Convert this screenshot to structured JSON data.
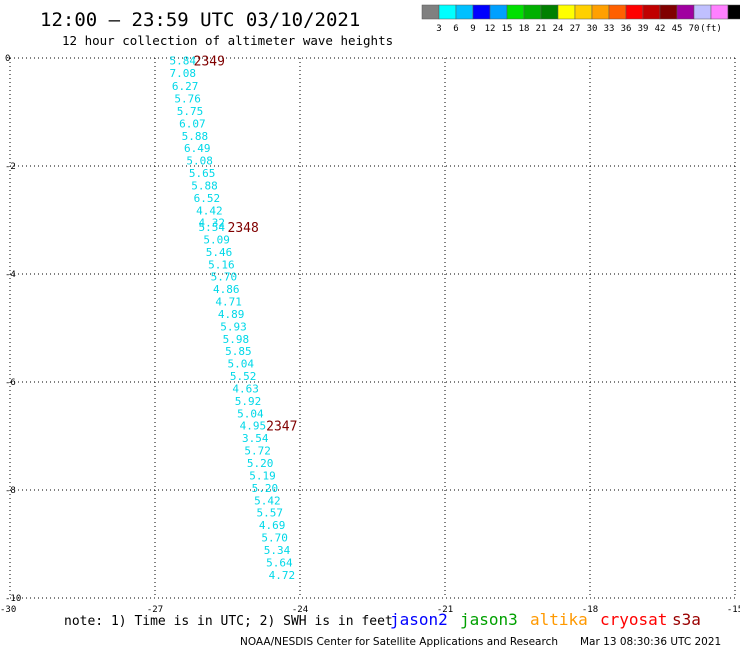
{
  "header": {
    "title": "12:00 — 23:59 UTC 03/10/2021",
    "subtitle": "12 hour collection of altimeter wave heights"
  },
  "legend": {
    "colors": [
      "#808080",
      "#00ffff",
      "#00c0ff",
      "#0000ff",
      "#00a0ff",
      "#00e000",
      "#00b000",
      "#008000",
      "#ffff00",
      "#ffd000",
      "#ffa000",
      "#ff6000",
      "#ff0000",
      "#c00000",
      "#800000",
      "#a000a0",
      "#c0c0ff",
      "#ff80ff",
      "#000000"
    ],
    "labels": [
      "3",
      "6",
      "9",
      "12",
      "15",
      "18",
      "21",
      "24",
      "27",
      "30",
      "33",
      "36",
      "39",
      "42",
      "45",
      "70",
      "(ft)"
    ]
  },
  "satellites": [
    {
      "name": "jason2",
      "color": "#0000ff"
    },
    {
      "name": "jason3",
      "color": "#00a000"
    },
    {
      "name": "altika",
      "color": "#ff9900"
    },
    {
      "name": "cryosat",
      "color": "#ff0000"
    },
    {
      "name": "s3a",
      "color": "#990000"
    }
  ],
  "footer": {
    "note": "note:  1) Time is in UTC; 2) SWH is in feet",
    "credit": "NOAA/NESDIS Center for Satellite Applications and Research",
    "timestamp": "Mar 13 08:30:36 UTC 2021"
  },
  "chart_data": {
    "type": "scatter",
    "xlim": [
      -30,
      -15
    ],
    "ylim": [
      -10,
      0
    ],
    "xticks": [
      "-30",
      "-27",
      "-24",
      "-21",
      "-18",
      "-15"
    ],
    "yticks": [
      "0",
      "-2",
      "-4",
      "-6",
      "-8",
      "-10"
    ],
    "grid": true,
    "point_color": "#00d8e8",
    "label_color": "#800000",
    "points": [
      {
        "x": -26.7,
        "y": -0.05,
        "v": "5.84"
      },
      {
        "x": -26.7,
        "y": -0.28,
        "v": "7.08"
      },
      {
        "x": -26.65,
        "y": -0.52,
        "v": "6.27"
      },
      {
        "x": -26.6,
        "y": -0.75,
        "v": "5.76"
      },
      {
        "x": -26.55,
        "y": -0.98,
        "v": "5.75"
      },
      {
        "x": -26.5,
        "y": -1.21,
        "v": "6.07"
      },
      {
        "x": -26.45,
        "y": -1.44,
        "v": "5.88"
      },
      {
        "x": -26.4,
        "y": -1.67,
        "v": "6.49"
      },
      {
        "x": -26.35,
        "y": -1.9,
        "v": "5.08"
      },
      {
        "x": -26.3,
        "y": -2.13,
        "v": "5.65"
      },
      {
        "x": -26.25,
        "y": -2.36,
        "v": "5.88"
      },
      {
        "x": -26.2,
        "y": -2.59,
        "v": "6.52"
      },
      {
        "x": -26.15,
        "y": -2.82,
        "v": "4.42"
      },
      {
        "x": -26.1,
        "y": -3.05,
        "v": "4.32"
      },
      {
        "x": -26.1,
        "y": -3.13,
        "v": "5.54"
      },
      {
        "x": -26.0,
        "y": -3.36,
        "v": "5.09"
      },
      {
        "x": -25.95,
        "y": -3.59,
        "v": "5.46"
      },
      {
        "x": -25.9,
        "y": -3.82,
        "v": "5.16"
      },
      {
        "x": -25.85,
        "y": -4.05,
        "v": "5.70"
      },
      {
        "x": -25.8,
        "y": -4.28,
        "v": "4.86"
      },
      {
        "x": -25.75,
        "y": -4.51,
        "v": "4.71"
      },
      {
        "x": -25.7,
        "y": -4.74,
        "v": "4.89"
      },
      {
        "x": -25.65,
        "y": -4.97,
        "v": "5.93"
      },
      {
        "x": -25.6,
        "y": -5.2,
        "v": "5.98"
      },
      {
        "x": -25.55,
        "y": -5.43,
        "v": "5.85"
      },
      {
        "x": -25.5,
        "y": -5.66,
        "v": "5.04"
      },
      {
        "x": -25.45,
        "y": -5.89,
        "v": "5.52"
      },
      {
        "x": -25.4,
        "y": -6.12,
        "v": "4.63"
      },
      {
        "x": -25.35,
        "y": -6.35,
        "v": "5.92"
      },
      {
        "x": -25.3,
        "y": -6.58,
        "v": "5.04"
      },
      {
        "x": -25.25,
        "y": -6.81,
        "v": "4.95"
      },
      {
        "x": -25.2,
        "y": -7.04,
        "v": "3.54"
      },
      {
        "x": -25.15,
        "y": -7.27,
        "v": "5.72"
      },
      {
        "x": -25.1,
        "y": -7.5,
        "v": "5.20"
      },
      {
        "x": -25.05,
        "y": -7.73,
        "v": "5.19"
      },
      {
        "x": -25.0,
        "y": -7.96,
        "v": "5.20"
      },
      {
        "x": -24.95,
        "y": -8.19,
        "v": "5.42"
      },
      {
        "x": -24.9,
        "y": -8.42,
        "v": "5.57"
      },
      {
        "x": -24.85,
        "y": -8.65,
        "v": "4.69"
      },
      {
        "x": -24.8,
        "y": -8.88,
        "v": "5.70"
      },
      {
        "x": -24.75,
        "y": -9.11,
        "v": "5.34"
      },
      {
        "x": -24.7,
        "y": -9.34,
        "v": "5.64"
      },
      {
        "x": -24.65,
        "y": -9.57,
        "v": "4.72"
      }
    ],
    "time_labels": [
      {
        "x": -26.2,
        "y": -0.05,
        "text": "2349"
      },
      {
        "x": -25.5,
        "y": -3.13,
        "text": "2348"
      },
      {
        "x": -24.7,
        "y": -6.81,
        "text": "2347"
      }
    ]
  }
}
